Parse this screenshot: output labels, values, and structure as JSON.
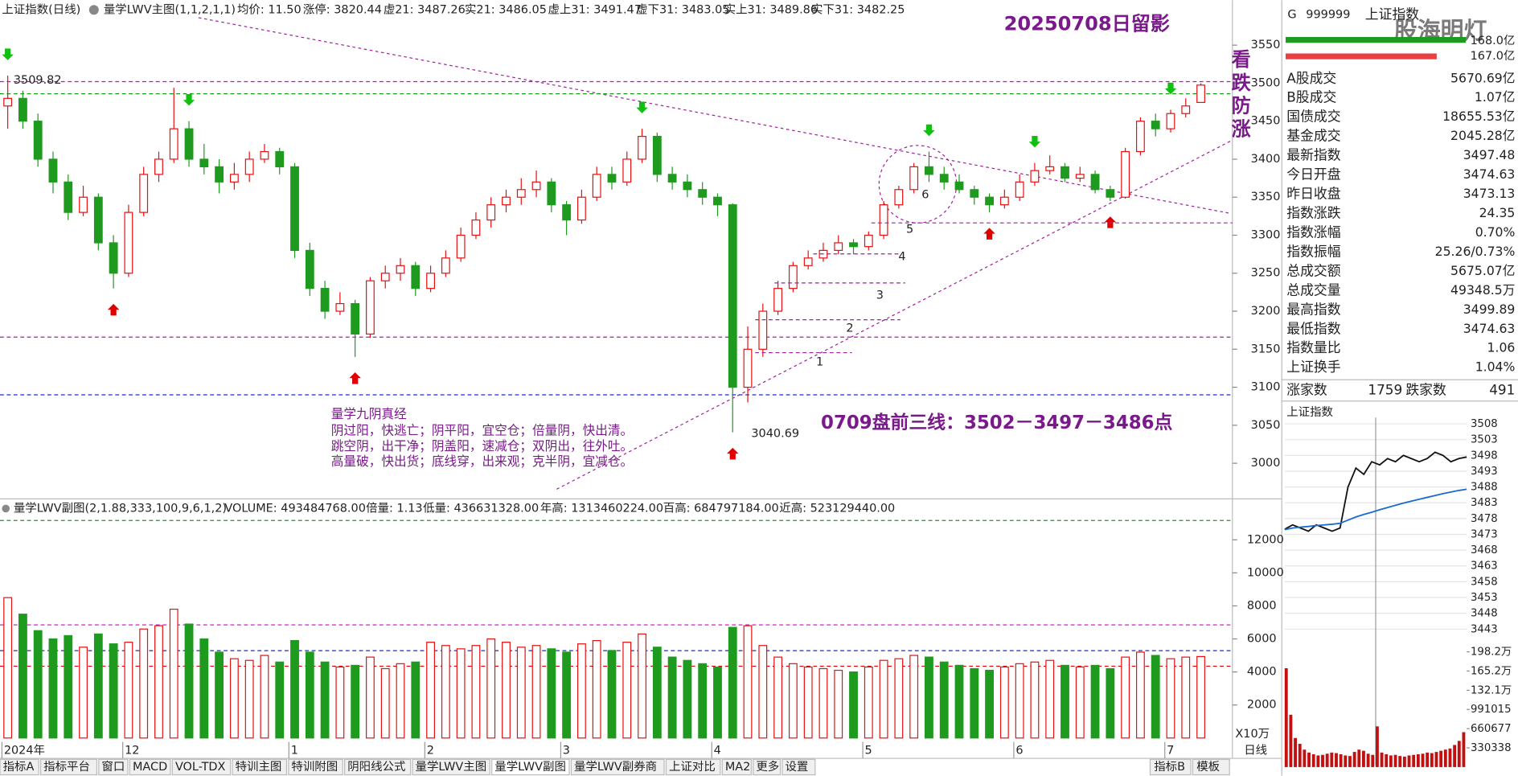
{
  "toolbar": {
    "symbol": "上证指数(日线)",
    "indicator": "量学LWV主图(1,1,2,1,1)",
    "items": [
      [
        "均价: 11.50",
        "#333"
      ],
      [
        "涨停: 3820.44",
        "#e00000"
      ],
      [
        "虚21: 3487.26",
        "#1a2ad0"
      ],
      [
        "实21: 3486.05",
        "#e00000"
      ],
      [
        "虚上31: 3491.47",
        "#d000d0"
      ],
      [
        "虚下31: 3483.05",
        "#1a2ad0"
      ],
      [
        "实上31: 3489.86",
        "#e00000"
      ],
      [
        "实下31: 3482.25",
        "#d000d0"
      ]
    ]
  },
  "annotations": {
    "stamp": "20250708日留影",
    "warning": [
      "看",
      "跌",
      "防",
      "涨"
    ],
    "high_label": "3509.82",
    "low_label": "3040.69",
    "scripture_title": "量学九阴真经",
    "scripture_lines": [
      "阴过阳，快逃亡；阴平阳，宜空仓；倍量阴，快出清。",
      "跳空阴，出干净；阴盖阳，速减仓；双阴出，往外吐。",
      "高量破，快出货；底线穿，出来观；克半阴，宜减仓。"
    ],
    "plan": "0709盘前三线：3502－3497－3486点",
    "waves": [
      "1",
      "2",
      "3",
      "4",
      "5",
      "6"
    ]
  },
  "sub_header": {
    "indicator": "量学LWV副图(2,1.88,333,100,9,6,1,2)",
    "items": [
      [
        "VOLUME: 493484768.00",
        "#333"
      ],
      [
        "倍量: 1.13",
        "#e00000"
      ],
      [
        "低量: 436631328.00",
        "#e00000"
      ],
      [
        "年高: 1313460224.00",
        "#1a9a1a"
      ],
      [
        "百高: 684797184.00",
        "#d000d0"
      ],
      [
        "近高: 523129440.00",
        "#1a2ad0"
      ]
    ],
    "unit": "X10万"
  },
  "chart_data": [
    {
      "type": "candlestick",
      "up_color": "#e81010",
      "down_color": "#1e9a1e",
      "candles": [
        [
          3470,
          3509.82,
          3440,
          3480
        ],
        [
          3480,
          3490,
          3440,
          3450
        ],
        [
          3450,
          3460,
          3390,
          3400
        ],
        [
          3400,
          3410,
          3355,
          3370
        ],
        [
          3370,
          3380,
          3320,
          3330
        ],
        [
          3330,
          3365,
          3325,
          3350
        ],
        [
          3350,
          3355,
          3280,
          3290
        ],
        [
          3290,
          3300,
          3230,
          3250
        ],
        [
          3250,
          3340,
          3245,
          3330
        ],
        [
          3330,
          3390,
          3325,
          3380
        ],
        [
          3380,
          3410,
          3370,
          3400
        ],
        [
          3400,
          3494,
          3395,
          3440
        ],
        [
          3440,
          3450,
          3390,
          3400
        ],
        [
          3400,
          3420,
          3380,
          3390
        ],
        [
          3390,
          3400,
          3355,
          3370
        ],
        [
          3370,
          3395,
          3360,
          3380
        ],
        [
          3380,
          3410,
          3370,
          3400
        ],
        [
          3400,
          3420,
          3395,
          3410
        ],
        [
          3410,
          3415,
          3380,
          3390
        ],
        [
          3390,
          3395,
          3270,
          3280
        ],
        [
          3280,
          3290,
          3220,
          3230
        ],
        [
          3230,
          3240,
          3190,
          3200
        ],
        [
          3200,
          3225,
          3195,
          3210
        ],
        [
          3210,
          3215,
          3140,
          3170
        ],
        [
          3170,
          3245,
          3165,
          3240
        ],
        [
          3240,
          3260,
          3230,
          3250
        ],
        [
          3250,
          3270,
          3240,
          3260
        ],
        [
          3260,
          3265,
          3220,
          3230
        ],
        [
          3230,
          3260,
          3225,
          3250
        ],
        [
          3250,
          3280,
          3245,
          3270
        ],
        [
          3270,
          3310,
          3265,
          3300
        ],
        [
          3300,
          3330,
          3295,
          3320
        ],
        [
          3320,
          3350,
          3310,
          3340
        ],
        [
          3340,
          3360,
          3330,
          3350
        ],
        [
          3350,
          3375,
          3340,
          3360
        ],
        [
          3360,
          3385,
          3350,
          3370
        ],
        [
          3370,
          3375,
          3330,
          3340
        ],
        [
          3340,
          3345,
          3300,
          3320
        ],
        [
          3320,
          3360,
          3315,
          3350
        ],
        [
          3350,
          3390,
          3345,
          3380
        ],
        [
          3380,
          3390,
          3360,
          3370
        ],
        [
          3370,
          3410,
          3365,
          3400
        ],
        [
          3400,
          3440,
          3395,
          3430
        ],
        [
          3430,
          3435,
          3370,
          3380
        ],
        [
          3380,
          3390,
          3360,
          3370
        ],
        [
          3370,
          3380,
          3350,
          3360
        ],
        [
          3360,
          3370,
          3340,
          3350
        ],
        [
          3350,
          3355,
          3325,
          3340
        ],
        [
          3340,
          3342,
          3040.69,
          3100
        ],
        [
          3100,
          3180,
          3080,
          3150
        ],
        [
          3150,
          3210,
          3140,
          3200
        ],
        [
          3200,
          3240,
          3195,
          3230
        ],
        [
          3230,
          3265,
          3225,
          3260
        ],
        [
          3260,
          3280,
          3255,
          3270
        ],
        [
          3270,
          3290,
          3265,
          3280
        ],
        [
          3280,
          3300,
          3275,
          3290
        ],
        [
          3290,
          3295,
          3275,
          3285
        ],
        [
          3285,
          3305,
          3280,
          3300
        ],
        [
          3300,
          3345,
          3295,
          3340
        ],
        [
          3340,
          3365,
          3335,
          3360
        ],
        [
          3360,
          3395,
          3355,
          3390
        ],
        [
          3390,
          3410,
          3370,
          3380
        ],
        [
          3380,
          3390,
          3360,
          3370
        ],
        [
          3370,
          3380,
          3355,
          3360
        ],
        [
          3360,
          3365,
          3340,
          3350
        ],
        [
          3350,
          3355,
          3330,
          3340
        ],
        [
          3340,
          3360,
          3335,
          3350
        ],
        [
          3350,
          3380,
          3345,
          3370
        ],
        [
          3370,
          3395,
          3365,
          3385
        ],
        [
          3385,
          3405,
          3380,
          3390
        ],
        [
          3390,
          3395,
          3370,
          3375
        ],
        [
          3375,
          3390,
          3370,
          3380
        ],
        [
          3380,
          3385,
          3355,
          3360
        ],
        [
          3360,
          3365,
          3345,
          3350
        ],
        [
          3350,
          3415,
          3348,
          3410
        ],
        [
          3410,
          3455,
          3405,
          3450
        ],
        [
          3450,
          3460,
          3430,
          3440
        ],
        [
          3440,
          3465,
          3435,
          3460
        ],
        [
          3460,
          3480,
          3455,
          3470
        ],
        [
          3474.63,
          3499.89,
          3474.63,
          3497.48
        ]
      ],
      "x_labels": [
        {
          "value": 0,
          "label": "2024年"
        },
        {
          "value": 8,
          "label": "12"
        },
        {
          "value": 19,
          "label": "1"
        },
        {
          "value": 28,
          "label": "2"
        },
        {
          "value": 37,
          "label": "3"
        },
        {
          "value": 47,
          "label": "4"
        },
        {
          "value": 57,
          "label": "5"
        },
        {
          "value": 67,
          "label": "6"
        },
        {
          "value": 77,
          "label": "7"
        }
      ],
      "ylim": [
        2957,
        3590
      ],
      "yticks": [
        3000,
        3050,
        3100,
        3150,
        3200,
        3250,
        3300,
        3350,
        3400,
        3450,
        3500,
        3550
      ],
      "levels": [
        3502,
        3486,
        3166,
        3090
      ],
      "level_colors": [
        "#d000d0",
        "#1a9a1a",
        "#a000a0",
        "#1a2ad0"
      ],
      "buy_signals": [
        7,
        23,
        48,
        65,
        73
      ],
      "sell_signals": [
        0,
        12,
        42,
        61,
        68,
        77
      ]
    },
    {
      "type": "bar",
      "values": [
        8500,
        7500,
        6500,
        6000,
        6200,
        5500,
        6300,
        5700,
        5800,
        6600,
        6800,
        7800,
        6900,
        6000,
        5200,
        4800,
        4700,
        5000,
        4600,
        5900,
        5200,
        4600,
        4300,
        4400,
        4900,
        4200,
        4500,
        4600,
        5800,
        5600,
        5400,
        5600,
        6000,
        5800,
        5500,
        5600,
        5400,
        5200,
        5700,
        5900,
        5300,
        5800,
        6300,
        5500,
        4900,
        4700,
        4500,
        4300,
        6700,
        6800,
        5600,
        4900,
        4500,
        4300,
        4200,
        4100,
        4000,
        4300,
        4700,
        4800,
        5000,
        4900,
        4600,
        4400,
        4200,
        4100,
        4300,
        4500,
        4600,
        4700,
        4400,
        4300,
        4400,
        4200,
        4900,
        5200,
        5000,
        4800,
        4900,
        4934.8
      ],
      "ylim": [
        0,
        13600
      ],
      "yticks": [
        2000,
        4000,
        6000,
        8000,
        10000,
        12000
      ],
      "levels": [
        13170,
        6850,
        5290,
        4350
      ],
      "level_colors": [
        "#1a9a1a",
        "#d000d0",
        "#1a2ad0",
        "#e00000"
      ]
    },
    {
      "type": "line",
      "title": "上证指数",
      "values": [
        3474.6,
        3476,
        3475,
        3474,
        3476,
        3475,
        3474,
        3475,
        3488,
        3494,
        3492,
        3496,
        3495,
        3497,
        3496,
        3498,
        3497,
        3496,
        3497,
        3499,
        3498,
        3496,
        3497,
        3497.5
      ],
      "avg": [
        3474.5,
        3475,
        3475.3,
        3475.5,
        3475.8,
        3476,
        3476.2,
        3476.5,
        3477.5,
        3478.5,
        3479.3,
        3480,
        3480.8,
        3481.5,
        3482.2,
        3482.9,
        3483.5,
        3484.1,
        3484.7,
        3485.3,
        3485.9,
        3486.4,
        3486.9,
        3487.3
      ],
      "color": "#111",
      "avg_color": "#1a6ad0",
      "ylim": [
        3441,
        3510
      ],
      "yticks": [
        3443,
        3448,
        3453,
        3458,
        3463,
        3468,
        3473,
        3478,
        3483,
        3488,
        3493,
        3498,
        3503,
        3508
      ]
    },
    {
      "type": "bar",
      "color": "#c01010",
      "values": [
        1700000,
        900000,
        500000,
        400000,
        300000,
        250000,
        220000,
        200000,
        210000,
        230000,
        250000,
        240000,
        220000,
        200000,
        190000,
        260000,
        300000,
        280000,
        230000,
        210000,
        700000,
        250000,
        220000,
        200000,
        210000,
        190000,
        180000,
        200000,
        210000,
        220000,
        230000,
        250000,
        240000,
        260000,
        280000,
        300000,
        320000,
        380000,
        450000,
        600000
      ],
      "ylim": [
        0,
        2115000
      ],
      "yticks": [
        {
          "value": 330338,
          "label": "330338"
        },
        {
          "value": 660677,
          "label": "660677"
        },
        {
          "value": 991015,
          "label": "991015"
        },
        {
          "value": 1321000,
          "label": "132.1万"
        },
        {
          "value": 1652000,
          "label": "165.2万"
        },
        {
          "value": 1982000,
          "label": "198.2万"
        }
      ]
    }
  ],
  "quote_panel": {
    "flag": "G",
    "code": "999999",
    "name": "上证指数",
    "watermark": "股海明灯",
    "bars": [
      "168.0亿",
      "167.0亿"
    ],
    "rows": [
      [
        "A股成交",
        "5670.69亿",
        "#111"
      ],
      [
        "B股成交",
        "1.07亿",
        "#111"
      ],
      [
        "国债成交",
        "18655.53亿",
        "#111"
      ],
      [
        "基金成交",
        "2045.28亿",
        "#111"
      ],
      [
        "最新指数",
        "3497.48",
        "#e00000"
      ],
      [
        "今日开盘",
        "3474.63",
        "#e00000"
      ],
      [
        "昨日收盘",
        "3473.13",
        "#111"
      ],
      [
        "指数涨跌",
        "24.35",
        "#e00000"
      ],
      [
        "指数涨幅",
        "0.70%",
        "#e00000"
      ],
      [
        "指数振幅",
        "25.26/0.73%",
        "#111"
      ],
      [
        "总成交额",
        "5675.07亿",
        "#111"
      ],
      [
        "总成交量",
        "49348.5万",
        "#111"
      ],
      [
        "最高指数",
        "3499.89",
        "#e00000"
      ],
      [
        "最低指数",
        "3474.63",
        "#e00000"
      ],
      [
        "指数量比",
        "1.06",
        "#e00000"
      ],
      [
        "上证换手",
        "1.04%",
        "#111"
      ]
    ],
    "breadth": [
      "涨家数",
      "1759",
      "跌家数",
      "491"
    ]
  },
  "tabs": {
    "left": [
      "指标A",
      "指标平台",
      "窗口",
      "MACD",
      "VOL-TDX",
      "特训主图",
      "特训附图",
      "阴阳线公式",
      "量学LWV主图",
      "量学LWV副图",
      "量学LWV副券商",
      "上证对比",
      "MA2",
      "更多",
      "设置"
    ],
    "right": [
      "指标B",
      "模板"
    ],
    "active": 9,
    "period": "日线"
  }
}
